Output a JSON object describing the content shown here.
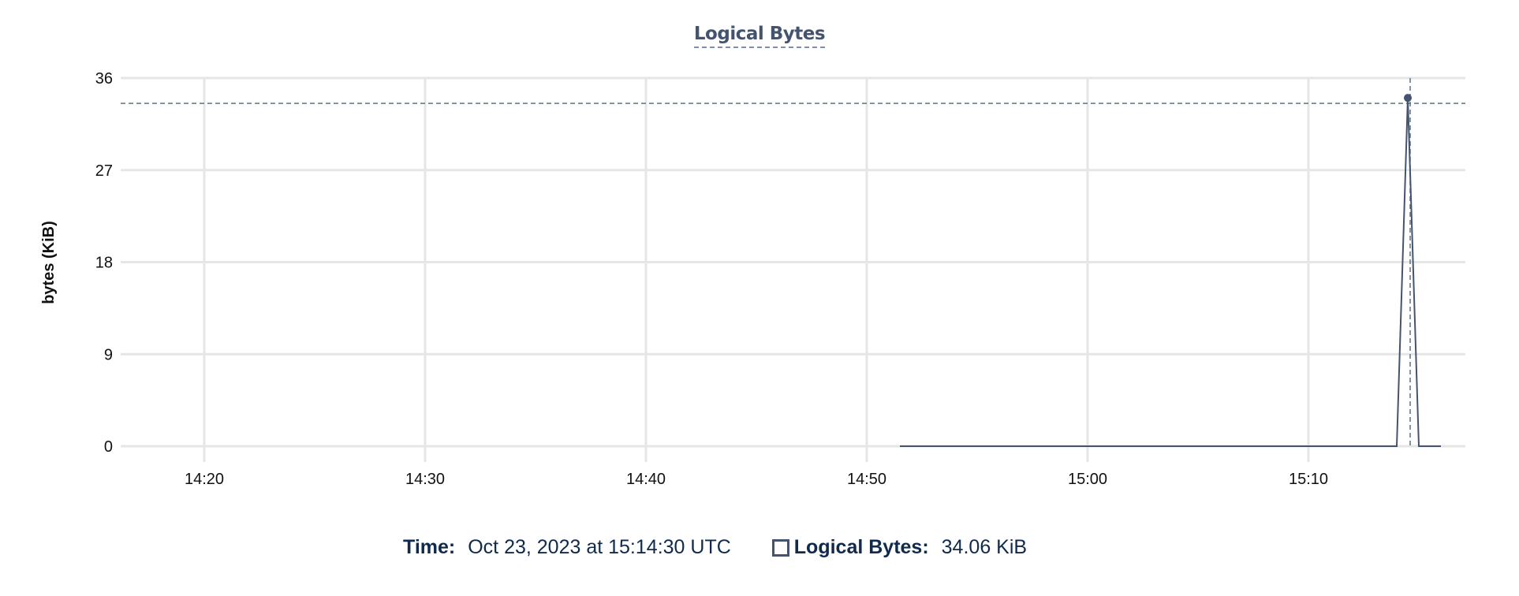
{
  "chart_data": {
    "type": "line",
    "title": "Logical Bytes",
    "ylabel": "bytes (KiB)",
    "xlabel": "",
    "ylim": [
      0,
      36
    ],
    "yticks": [
      0,
      9,
      18,
      27,
      36
    ],
    "xlim": [
      "14:17",
      "15:17"
    ],
    "xticks": [
      "14:20",
      "14:30",
      "14:40",
      "14:50",
      "15:00",
      "15:10"
    ],
    "grid": true,
    "color": "#44546f",
    "series": [
      {
        "name": "Logical Bytes",
        "x": [
          "14:51:30",
          "15:14:00",
          "15:14:30",
          "15:15:00",
          "15:16:00"
        ],
        "y": [
          0,
          0,
          34.06,
          0,
          0
        ]
      }
    ],
    "crosshair": {
      "x": "15:14:30",
      "y": 34.06
    }
  },
  "legend": {
    "time_label": "Time:",
    "time_value": "Oct 23, 2023 at 15:14:30 UTC",
    "series_label": "Logical Bytes:",
    "series_value": "34.06 KiB"
  }
}
